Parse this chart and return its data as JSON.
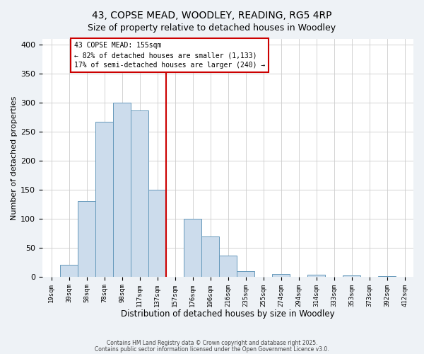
{
  "title": "43, COPSE MEAD, WOODLEY, READING, RG5 4RP",
  "subtitle": "Size of property relative to detached houses in Woodley",
  "xlabel": "Distribution of detached houses by size in Woodley",
  "ylabel": "Number of detached properties",
  "bin_labels": [
    "19sqm",
    "39sqm",
    "58sqm",
    "78sqm",
    "98sqm",
    "117sqm",
    "137sqm",
    "157sqm",
    "176sqm",
    "196sqm",
    "216sqm",
    "235sqm",
    "255sqm",
    "274sqm",
    "294sqm",
    "314sqm",
    "333sqm",
    "353sqm",
    "373sqm",
    "392sqm",
    "412sqm"
  ],
  "bar_heights": [
    0,
    20,
    130,
    267,
    300,
    287,
    150,
    0,
    100,
    69,
    37,
    10,
    0,
    5,
    0,
    3,
    0,
    2,
    0,
    1,
    0
  ],
  "bar_color": "#ccdcec",
  "bar_edge_color": "#6699bb",
  "marker_x_label": "157sqm",
  "marker_line_color": "#cc0000",
  "annotation_line1": "43 COPSE MEAD: 155sqm",
  "annotation_line2": "← 82% of detached houses are smaller (1,133)",
  "annotation_line3": "17% of semi-detached houses are larger (240) →",
  "ylim": [
    0,
    410
  ],
  "yticks": [
    0,
    50,
    100,
    150,
    200,
    250,
    300,
    350,
    400
  ],
  "footer1": "Contains HM Land Registry data © Crown copyright and database right 2025.",
  "footer2": "Contains public sector information licensed under the Open Government Licence v3.0.",
  "bg_color": "#eef2f6",
  "plot_bg_color": "#ffffff",
  "grid_color": "#cccccc"
}
